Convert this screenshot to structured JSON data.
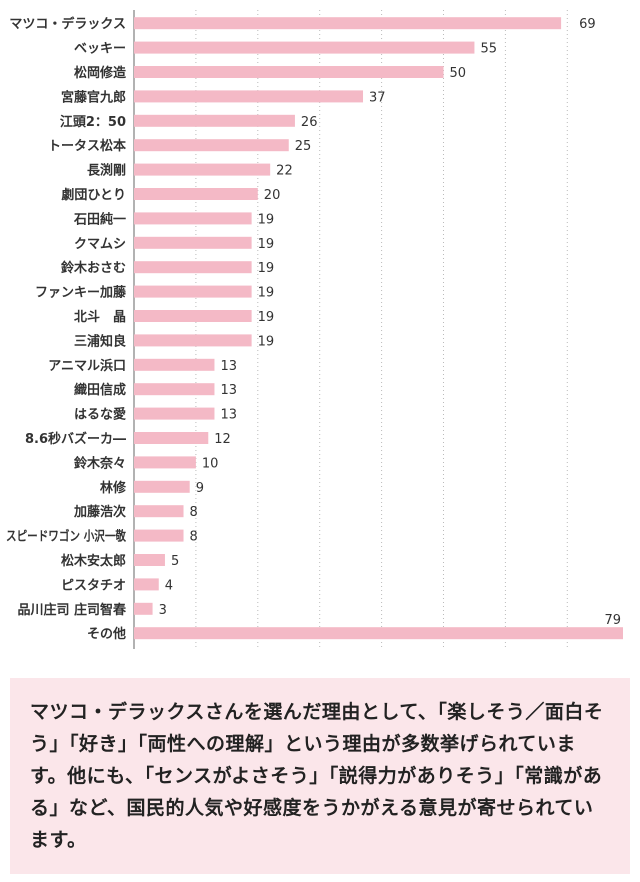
{
  "chart_data": {
    "type": "bar",
    "orientation": "horizontal",
    "categories": [
      "マツコ・デラックス",
      "ベッキー",
      "松岡修造",
      "宮藤官九郎",
      "江頭2：50",
      "トータス松本",
      "長渕剛",
      "劇団ひとり",
      "石田純一",
      "クマムシ",
      "鈴木おさむ",
      "ファンキー加藤",
      "北斗　晶",
      "三浦知良",
      "アニマル浜口",
      "織田信成",
      "はるな愛",
      "8.6秒バズーカ―",
      "鈴木奈々",
      "林修",
      "加藤浩次",
      "スピードワゴン 小沢一敬",
      "松木安太郎",
      "ピスタチオ",
      "品川庄司 庄司智春",
      "その他"
    ],
    "values": [
      69,
      55,
      50,
      37,
      26,
      25,
      22,
      20,
      19,
      19,
      19,
      19,
      19,
      19,
      13,
      13,
      13,
      12,
      10,
      9,
      8,
      8,
      5,
      4,
      3,
      79
    ],
    "xlim": [
      0,
      79
    ],
    "grid": true,
    "colors": {
      "bar": "#f4b9c6",
      "grid": "#bbbbbb",
      "axis": "#666666"
    }
  },
  "note": {
    "text": "マツコ・デラックスさんを選んだ理由として、「楽しそう／面白そう」「好き」「両性への理解」という理由が多数挙げられています。他にも、「センスがよさそう」「説得力がありそう」「常識がある」など、国民的人気や好感度をうかがえる意見が寄せられています。"
  }
}
